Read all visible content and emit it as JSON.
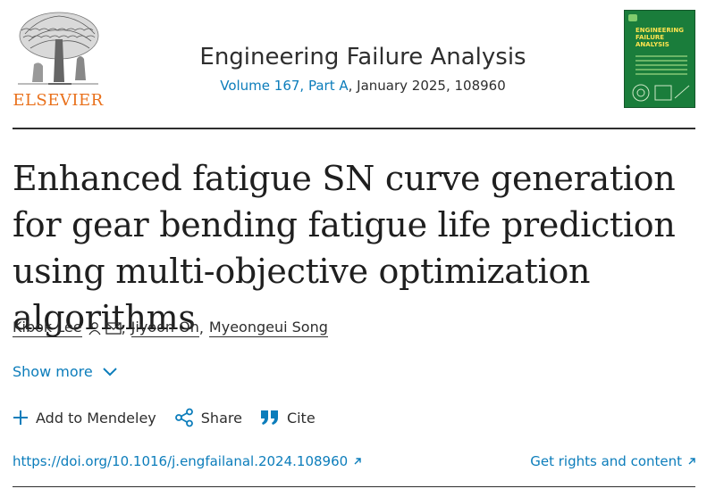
{
  "publisher": {
    "name": "ELSEVIER"
  },
  "journal": {
    "title": "Engineering Failure Analysis",
    "volume_link": "Volume 167, Part A",
    "issue_details": ", January 2025, 108960",
    "cover_title": "ENGINEERING FAILURE ANALYSIS"
  },
  "article": {
    "title": "Enhanced fatigue SN curve generation for gear bending fatigue life prediction using multi-objective optimization algorithms",
    "authors": [
      {
        "name": "Kibok Lee",
        "separator": ","
      },
      {
        "name": "Jiyoon Oh",
        "separator": ","
      },
      {
        "name": "Myeongeui Song",
        "separator": ""
      }
    ]
  },
  "show_more": {
    "label": "Show more"
  },
  "actions": {
    "mendeley": "Add to Mendeley",
    "share": "Share",
    "cite": "Cite"
  },
  "links": {
    "doi": "https://doi.org/10.1016/j.engfailanal.2024.108960",
    "rights": "Get rights and content"
  },
  "colors": {
    "link": "#0c7dbb",
    "publisher_orange": "#e9711c",
    "cover_green": "#1a7d3b",
    "cover_yellow": "#ffe44f"
  },
  "icons": [
    "elsevier-tree-logo",
    "person-icon",
    "mail-icon",
    "chevron-down-icon",
    "plus-icon",
    "share-icon",
    "quote-icon",
    "external-arrow-icon"
  ]
}
